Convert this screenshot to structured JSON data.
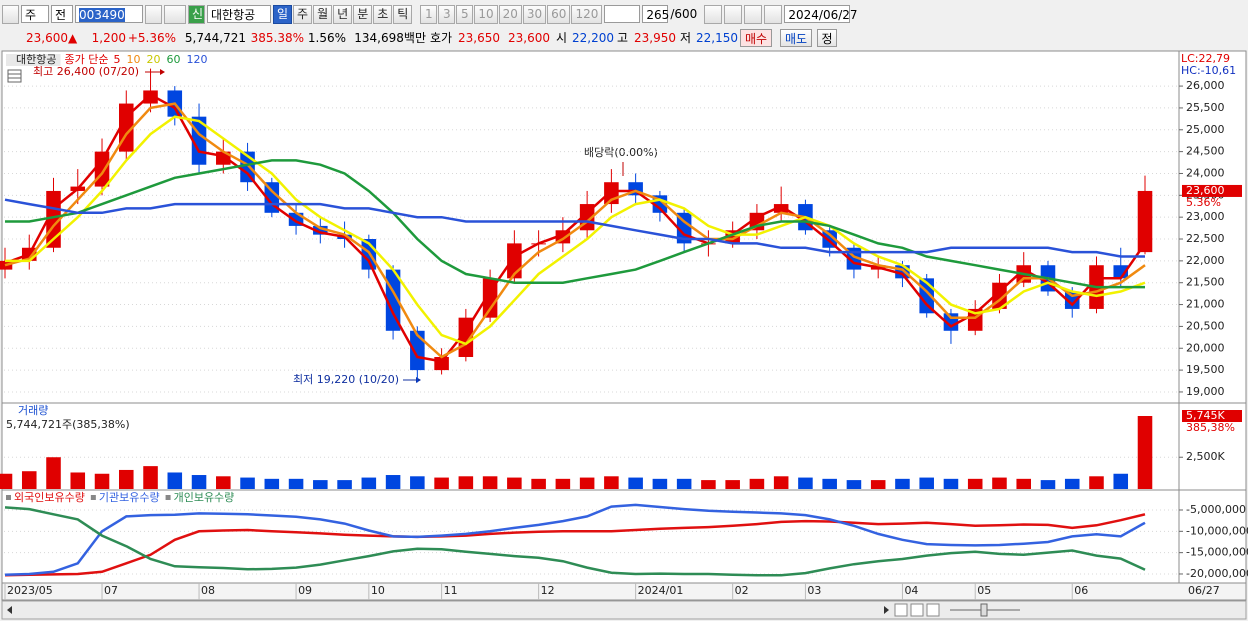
{
  "toolbar": {
    "market": "주",
    "kind": "전",
    "code": "003490",
    "new": "신",
    "name": "대한항공",
    "periods": [
      "일",
      "주",
      "월",
      "년",
      "분",
      "초",
      "틱"
    ],
    "intervals": [
      "1",
      "3",
      "5",
      "10",
      "20",
      "30",
      "60",
      "120"
    ],
    "count": "265",
    "max": "/600",
    "date": "2024/06/27"
  },
  "quote": {
    "price": "23,600",
    "arrow": "▲",
    "change": "1,200",
    "rate": "+5.36%",
    "volume": "5,744,721",
    "volume_rate": "385.38%",
    "turnover": "1.56%",
    "amount": "134,698백만",
    "bid_ask_label": "호가",
    "ask": "23,650",
    "bid": "23,600",
    "open_label": "시",
    "open": "22,200",
    "high_label": "고",
    "high": "23,950",
    "low_label": "저",
    "low": "22,150",
    "buy": "매수",
    "sell": "매도",
    "correct": "정"
  },
  "chart_data": [
    {
      "type": "candlestick",
      "title": "대한항공",
      "legend_prefix": "종가 단순",
      "categories": [
        "2023/05",
        null,
        null,
        null,
        "07",
        null,
        null,
        null,
        "08",
        null,
        null,
        null,
        "09",
        null,
        null,
        "10",
        null,
        null,
        "11",
        null,
        null,
        null,
        "12",
        null,
        null,
        null,
        "2024/01",
        null,
        null,
        null,
        "02",
        null,
        null,
        "03",
        null,
        null,
        null,
        "04",
        null,
        null,
        "05",
        null,
        null,
        null,
        "06",
        null,
        null,
        null
      ],
      "open": [
        21800,
        22000,
        22300,
        23600,
        23700,
        24500,
        25600,
        25900,
        25300,
        24200,
        24500,
        23800,
        23100,
        22800,
        22600,
        22500,
        21800,
        20400,
        19500,
        19800,
        20700,
        21600,
        22400,
        22400,
        22700,
        23300,
        23800,
        23500,
        23100,
        22400,
        22400,
        22700,
        23100,
        23300,
        22700,
        22300,
        21800,
        21900,
        21600,
        20800,
        20400,
        20900,
        21500,
        21900,
        21300,
        20900,
        21900,
        22200
      ],
      "high": [
        22300,
        22600,
        23900,
        24100,
        24800,
        25900,
        26400,
        26000,
        25600,
        24800,
        24700,
        23900,
        23300,
        23000,
        22900,
        22600,
        21900,
        20500,
        20000,
        20900,
        21800,
        22700,
        22700,
        23000,
        23600,
        24100,
        24000,
        23600,
        23200,
        22700,
        22900,
        23300,
        23700,
        23400,
        22800,
        22400,
        22100,
        22000,
        21700,
        20900,
        21100,
        21700,
        22200,
        22000,
        21400,
        22100,
        22300,
        23950
      ],
      "low": [
        21600,
        21800,
        22200,
        23300,
        23500,
        24300,
        25400,
        25100,
        24000,
        24000,
        23600,
        23000,
        22600,
        22400,
        22300,
        21600,
        20200,
        19220,
        19400,
        19700,
        20600,
        21500,
        22100,
        22200,
        22500,
        23100,
        23300,
        22900,
        22200,
        22100,
        22300,
        22500,
        22900,
        22600,
        22100,
        21600,
        21600,
        21400,
        20700,
        20100,
        20300,
        20800,
        21400,
        21200,
        20700,
        20800,
        21400,
        22150
      ],
      "close": [
        22000,
        22300,
        23600,
        23700,
        24500,
        25600,
        25900,
        25300,
        24200,
        24500,
        23800,
        23100,
        22800,
        22600,
        22500,
        21800,
        20400,
        19500,
        19800,
        20700,
        21600,
        22400,
        22400,
        22700,
        23300,
        23800,
        23500,
        23100,
        22400,
        22400,
        22700,
        23100,
        23300,
        22700,
        22300,
        21800,
        21900,
        21600,
        20800,
        20400,
        20900,
        21500,
        21900,
        21300,
        20900,
        21900,
        21600,
        23600
      ],
      "series": [
        {
          "name": "5",
          "color": "#e00000",
          "width": 2.5,
          "values": [
            21950,
            22150,
            23200,
            23650,
            24300,
            25300,
            25800,
            25500,
            24500,
            24400,
            24000,
            23300,
            22900,
            22650,
            22550,
            22000,
            20800,
            19800,
            19700,
            20400,
            21300,
            22100,
            22400,
            22600,
            23100,
            23600,
            23600,
            23200,
            22600,
            22400,
            22600,
            23000,
            23250,
            22900,
            22450,
            21950,
            21850,
            21700,
            21000,
            20500,
            20800,
            21300,
            21800,
            21500,
            21000,
            21600,
            21600,
            22400
          ]
        },
        {
          "name": "10",
          "color": "#f08a10",
          "width": 2.5,
          "values": [
            21900,
            22050,
            22800,
            23400,
            24000,
            24900,
            25500,
            25600,
            24900,
            24500,
            24200,
            23600,
            23100,
            22750,
            22600,
            22200,
            21300,
            20300,
            19800,
            20100,
            20900,
            21700,
            22200,
            22500,
            22900,
            23400,
            23600,
            23400,
            22900,
            22500,
            22500,
            22800,
            23100,
            23000,
            22600,
            22100,
            21900,
            21800,
            21300,
            20700,
            20700,
            21100,
            21600,
            21600,
            21200,
            21300,
            21500,
            21900
          ]
        },
        {
          "name": "20",
          "color": "#f2f200",
          "width": 2.5,
          "values": [
            22000,
            22000,
            22500,
            23000,
            23600,
            24300,
            24900,
            25300,
            25200,
            24800,
            24400,
            24000,
            23400,
            23000,
            22700,
            22400,
            21800,
            21000,
            20300,
            20100,
            20500,
            21100,
            21700,
            22100,
            22500,
            23000,
            23300,
            23400,
            23200,
            22800,
            22600,
            22600,
            22800,
            23000,
            22800,
            22400,
            22100,
            21900,
            21500,
            21000,
            20800,
            20900,
            21300,
            21500,
            21300,
            21200,
            21300,
            21500
          ]
        },
        {
          "name": "60",
          "color": "#1e9a3c",
          "width": 2.5,
          "values": [
            22900,
            22900,
            23000,
            23100,
            23300,
            23500,
            23700,
            23900,
            24000,
            24100,
            24200,
            24300,
            24300,
            24200,
            24000,
            23600,
            23100,
            22500,
            22000,
            21700,
            21600,
            21500,
            21500,
            21500,
            21600,
            21700,
            21800,
            22000,
            22200,
            22400,
            22600,
            22800,
            22900,
            22900,
            22800,
            22600,
            22400,
            22300,
            22100,
            22000,
            21900,
            21800,
            21700,
            21600,
            21500,
            21400,
            21400,
            21400
          ]
        },
        {
          "name": "120",
          "color": "#2a52d8",
          "width": 2.5,
          "values": [
            23400,
            23300,
            23200,
            23100,
            23100,
            23200,
            23200,
            23300,
            23300,
            23300,
            23300,
            23300,
            23300,
            23300,
            23200,
            23200,
            23100,
            23000,
            23000,
            22900,
            22900,
            22900,
            22900,
            22900,
            22900,
            22800,
            22700,
            22600,
            22500,
            22500,
            22400,
            22400,
            22300,
            22300,
            22200,
            22200,
            22200,
            22200,
            22200,
            22300,
            22300,
            22300,
            22300,
            22300,
            22200,
            22200,
            22100,
            22100
          ]
        }
      ],
      "ylim": [
        18770,
        26780
      ],
      "yticks": [
        {
          "value": 19000,
          "label": "19,000"
        },
        {
          "value": 19500,
          "label": "19,500"
        },
        {
          "value": 20000,
          "label": "20,000"
        },
        {
          "value": 20500,
          "label": "20,500"
        },
        {
          "value": 21000,
          "label": "21,000"
        },
        {
          "value": 21500,
          "label": "21,500"
        },
        {
          "value": 22000,
          "label": "22,000"
        },
        {
          "value": 22500,
          "label": "22,500"
        },
        {
          "value": 23000,
          "label": "23,000"
        },
        {
          "value": 23500,
          "label": "23,500"
        },
        {
          "value": 24000,
          "label": "24,000"
        },
        {
          "value": 24500,
          "label": "24,500"
        },
        {
          "value": 25000,
          "label": "25,000"
        },
        {
          "value": 25500,
          "label": "25,500"
        },
        {
          "value": 26000,
          "label": "26,000"
        }
      ],
      "grid": true,
      "up_color": "#e00000",
      "down_color": "#0046e0",
      "close_label": "23,600",
      "change_label": "5.36%",
      "lc": "LC:22,79",
      "hc": "HC:-10,61",
      "annotations": {
        "high": "최고 26,400 (07/20)",
        "low": "최저 19,220 (10/20)",
        "dividend": "배당락(0.00%)"
      },
      "last_date": "06/27"
    },
    {
      "type": "bar",
      "title": "거래량",
      "subtitle": "5,744,721주(385,38%)",
      "values": [
        1200,
        1400,
        2500,
        1300,
        1200,
        1500,
        1800,
        1300,
        1100,
        1000,
        900,
        800,
        800,
        700,
        700,
        900,
        1100,
        1000,
        900,
        1000,
        1000,
        900,
        800,
        800,
        900,
        1000,
        900,
        800,
        800,
        700,
        700,
        800,
        1000,
        900,
        800,
        700,
        700,
        800,
        900,
        800,
        800,
        900,
        800,
        700,
        800,
        1000,
        1200,
        5745
      ],
      "value_labels": [
        null,
        null,
        null,
        null,
        null,
        null,
        null,
        null,
        null,
        null,
        null,
        null,
        null,
        null,
        null,
        null,
        null,
        null,
        null,
        null,
        null,
        null,
        null,
        null,
        null,
        null,
        null,
        null,
        null,
        null,
        null,
        null,
        null,
        null,
        null,
        null,
        null,
        null,
        null,
        null,
        null,
        null,
        null,
        null,
        null,
        null,
        null,
        "5,745K"
      ],
      "rate_label": "385,38%",
      "ylim": [
        0,
        6690
      ],
      "yticks": [
        {
          "value": 2500,
          "label": "2,500K"
        }
      ]
    },
    {
      "type": "line",
      "series": [
        {
          "name": "외국인보유수량",
          "color": "#e01010",
          "values": [
            -20300000,
            -20200000,
            -20100000,
            -20000000,
            -19500000,
            -17500000,
            -15500000,
            -12000000,
            -10000000,
            -9800000,
            -9700000,
            -10000000,
            -10200000,
            -10500000,
            -10800000,
            -11000000,
            -11200000,
            -11300000,
            -11200000,
            -11000000,
            -10600000,
            -10300000,
            -10100000,
            -10000000,
            -10000000,
            -10000000,
            -9700000,
            -9400000,
            -9200000,
            -9000000,
            -8700000,
            -8300000,
            -7800000,
            -7600000,
            -7700000,
            -8000000,
            -8300000,
            -8200000,
            -8000000,
            -8300000,
            -8700000,
            -8600000,
            -8400000,
            -8500000,
            -9200000,
            -8600000,
            -7400000,
            -6000000
          ]
        },
        {
          "name": "기관보유수량",
          "color": "#3462e0",
          "values": [
            -20200000,
            -20000000,
            -19500000,
            -17500000,
            -10000000,
            -6500000,
            -6200000,
            -6100000,
            -5800000,
            -5900000,
            -6000000,
            -6300000,
            -6600000,
            -7200000,
            -8200000,
            -9800000,
            -11200000,
            -11300000,
            -11000000,
            -10600000,
            -10000000,
            -9200000,
            -8500000,
            -7600000,
            -6500000,
            -4200000,
            -3800000,
            -4300000,
            -4800000,
            -5200000,
            -5400000,
            -5600000,
            -5800000,
            -6200000,
            -7200000,
            -8700000,
            -10600000,
            -12000000,
            -13000000,
            -13200000,
            -13300000,
            -13200000,
            -12900000,
            -12500000,
            -11200000,
            -10700000,
            -11200000,
            -8000000
          ]
        },
        {
          "name": "개인보유수량",
          "color": "#2e8c55",
          "values": [
            -4400000,
            -4800000,
            -6000000,
            -7200000,
            -11000000,
            -13500000,
            -16500000,
            -18200000,
            -18400000,
            -18600000,
            -18900000,
            -18800000,
            -18500000,
            -17800000,
            -16800000,
            -15800000,
            -14700000,
            -14100000,
            -14200000,
            -14800000,
            -15300000,
            -15800000,
            -16200000,
            -17000000,
            -18500000,
            -19700000,
            -20000000,
            -19900000,
            -20000000,
            -20000000,
            -20200000,
            -20300000,
            -20300000,
            -19800000,
            -18700000,
            -17700000,
            -17000000,
            -16500000,
            -15700000,
            -15100000,
            -14800000,
            -15300000,
            -15500000,
            -15000000,
            -14500000,
            -15700000,
            -16400000,
            -19000000
          ]
        }
      ],
      "ylim": [
        -21880000,
        -550000
      ],
      "yticks": [
        {
          "value": -5000000,
          "label": "-5,000,000"
        },
        {
          "value": -10000000,
          "label": "-10,000,000"
        },
        {
          "value": -15000000,
          "label": "-15,000,000"
        },
        {
          "value": -20000000,
          "label": "-20,000,000"
        }
      ]
    }
  ]
}
